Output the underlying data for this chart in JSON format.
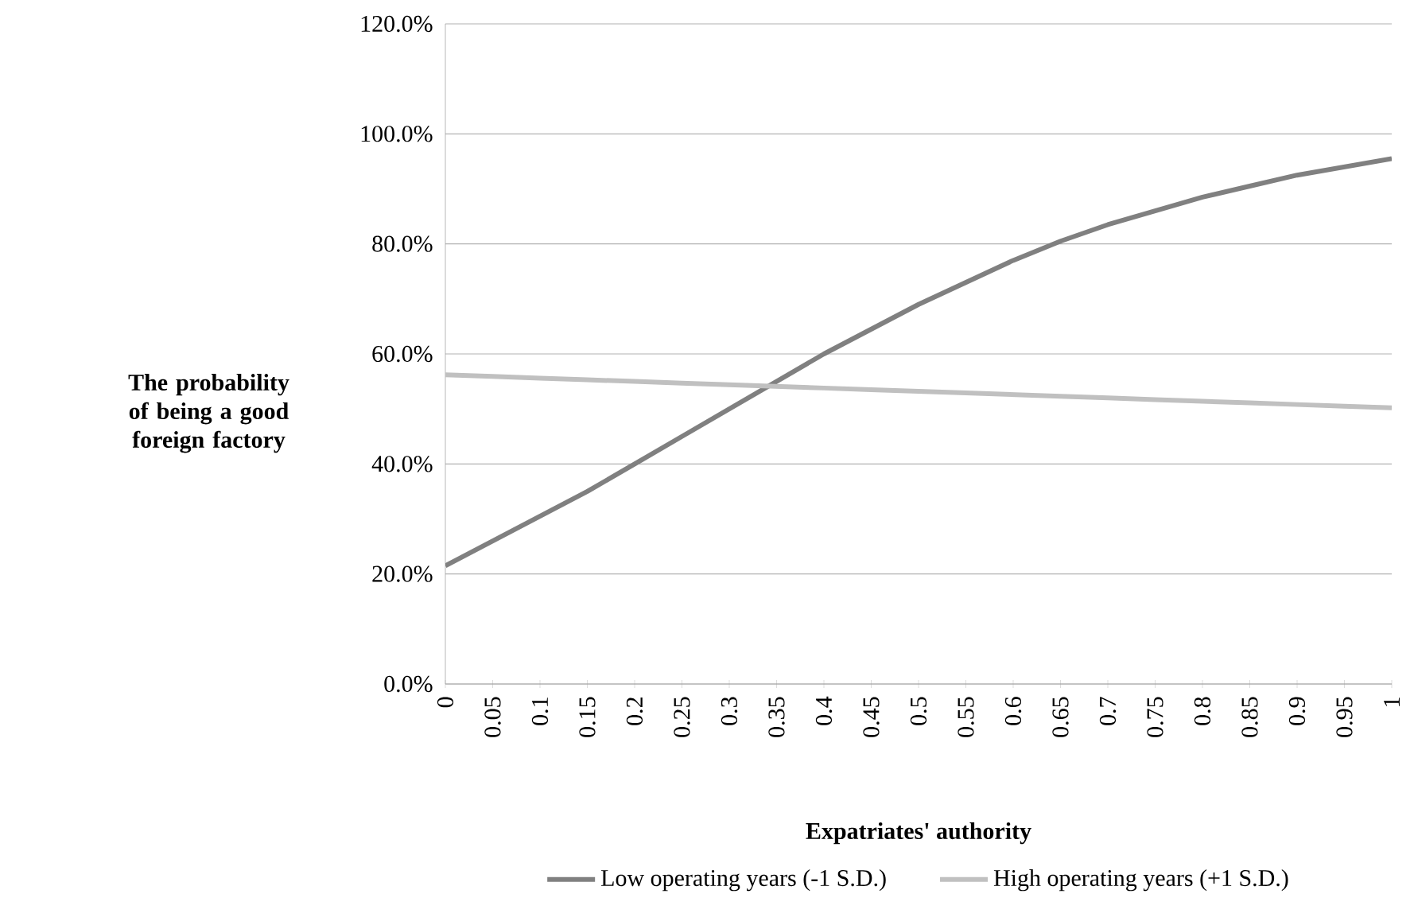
{
  "chart_data": {
    "type": "line",
    "xlabel": "Expatriates' authority",
    "ylabel": "The probability of being a good foreign factory",
    "categories": [
      "0",
      "0.05",
      "0.1",
      "0.15",
      "0.2",
      "0.25",
      "0.3",
      "0.35",
      "0.4",
      "0.45",
      "0.5",
      "0.55",
      "0.6",
      "0.65",
      "0.7",
      "0.75",
      "0.8",
      "0.85",
      "0.9",
      "0.95",
      "1"
    ],
    "series": [
      {
        "name": "Low operating years (-1 S.D.)",
        "color": "#808080",
        "values": [
          21.5,
          26,
          30.5,
          35,
          40,
          45,
          50,
          55,
          60,
          64.5,
          69,
          73,
          77,
          80.5,
          83.5,
          86,
          88.5,
          90.5,
          92.5,
          94,
          95.5
        ]
      },
      {
        "name": "High operating years (+1 S.D.)",
        "color": "#c0c0c0",
        "values": [
          56.2,
          55.9,
          55.6,
          55.3,
          55.0,
          54.7,
          54.4,
          54.1,
          53.8,
          53.5,
          53.2,
          52.9,
          52.6,
          52.3,
          52.0,
          51.7,
          51.4,
          51.1,
          50.8,
          50.5,
          50.2
        ]
      }
    ],
    "ylim": [
      0,
      120
    ],
    "yticks": [
      {
        "value": 0,
        "label": "0.0%"
      },
      {
        "value": 20,
        "label": "20.0%"
      },
      {
        "value": 40,
        "label": "40.0%"
      },
      {
        "value": 60,
        "label": "60.0%"
      },
      {
        "value": 80,
        "label": "80.0%"
      },
      {
        "value": 100,
        "label": "100.0%"
      },
      {
        "value": 120,
        "label": "120.0%"
      }
    ],
    "grid": "y",
    "legend": "bottom"
  }
}
